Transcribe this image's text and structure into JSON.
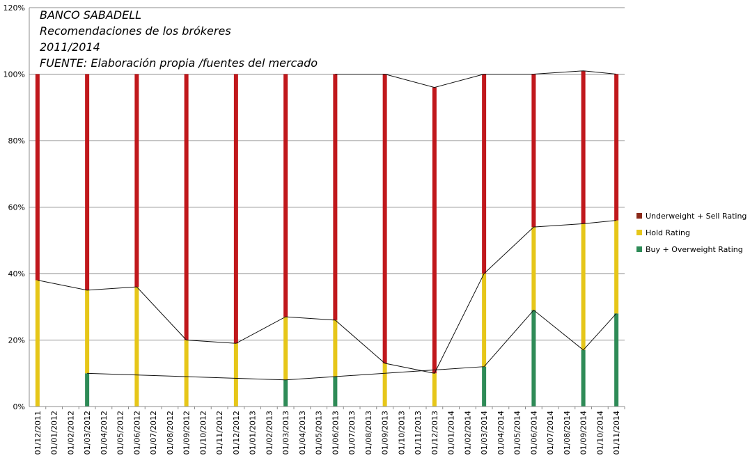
{
  "chart_data": {
    "type": "bar",
    "stacked": true,
    "title_lines": [
      "BANCO SABADELL",
      "Recomendaciones de los brókeres",
      "2011/2014",
      "FUENTE: Elaboración propia /fuentes del mercado"
    ],
    "ylim": [
      0,
      120
    ],
    "yticks": [
      0,
      20,
      40,
      60,
      80,
      100,
      120
    ],
    "ytick_labels": [
      "0%",
      "20%",
      "40%",
      "60%",
      "80%",
      "100%",
      "120%"
    ],
    "grid": true,
    "legend_position": "right",
    "categories": [
      "01/12/2011",
      "01/01/2012",
      "01/02/2012",
      "01/03/2012",
      "01/04/2012",
      "01/05/2012",
      "01/06/2012",
      "01/07/2012",
      "01/08/2012",
      "01/09/2012",
      "01/10/2012",
      "01/11/2012",
      "01/12/2012",
      "01/01/2013",
      "01/02/2013",
      "01/03/2013",
      "01/04/2013",
      "01/05/2013",
      "01/06/2013",
      "01/07/2013",
      "01/08/2013",
      "01/09/2013",
      "01/10/2013",
      "01/11/2013",
      "01/12/2013",
      "01/01/2014",
      "01/02/2014",
      "01/03/2014",
      "01/04/2014",
      "01/05/2014",
      "01/06/2014",
      "01/07/2014",
      "01/08/2014",
      "01/09/2014",
      "01/10/2014",
      "01/11/2014"
    ],
    "series": [
      {
        "name": "Buy + Overweight Rating",
        "color": "#2e8b57",
        "values": [
          0,
          null,
          null,
          10,
          null,
          null,
          0,
          null,
          null,
          0,
          null,
          null,
          0,
          null,
          null,
          8,
          null,
          null,
          9,
          null,
          null,
          0,
          null,
          null,
          0,
          null,
          null,
          12,
          null,
          null,
          29,
          null,
          null,
          17,
          null,
          28
        ]
      },
      {
        "name": "Hold Rating",
        "color": "#e6c619",
        "values": [
          38,
          null,
          null,
          25,
          null,
          null,
          36,
          null,
          null,
          20,
          null,
          null,
          19,
          null,
          null,
          19,
          null,
          null,
          17,
          null,
          null,
          13,
          null,
          null,
          10,
          null,
          null,
          28,
          null,
          null,
          25,
          null,
          null,
          38,
          null,
          28
        ]
      },
      {
        "name": "Underweight + Sell Rating",
        "color": "#c0181c",
        "values": [
          62,
          null,
          null,
          65,
          null,
          null,
          64,
          null,
          null,
          80,
          null,
          null,
          81,
          null,
          null,
          73,
          null,
          null,
          74,
          null,
          null,
          87,
          null,
          null,
          86,
          null,
          null,
          60,
          null,
          null,
          46,
          null,
          null,
          46,
          null,
          44
        ]
      }
    ],
    "line_series": [
      {
        "name": "buy-line",
        "values": [
          null,
          null,
          null,
          10,
          null,
          null,
          null,
          null,
          null,
          null,
          null,
          null,
          null,
          null,
          null,
          8,
          null,
          null,
          9,
          null,
          null,
          null,
          null,
          null,
          null,
          null,
          null,
          12,
          null,
          null,
          29,
          null,
          null,
          17,
          null,
          28
        ]
      },
      {
        "name": "buy-hold-line",
        "values": [
          38,
          null,
          null,
          35,
          null,
          null,
          36,
          null,
          null,
          20,
          null,
          null,
          19,
          null,
          null,
          27,
          null,
          null,
          26,
          null,
          null,
          13,
          null,
          null,
          10,
          null,
          null,
          40,
          null,
          null,
          54,
          null,
          null,
          55,
          null,
          56
        ]
      },
      {
        "name": "total-line",
        "values": [
          null,
          null,
          null,
          null,
          null,
          null,
          null,
          null,
          null,
          null,
          null,
          null,
          null,
          null,
          null,
          null,
          null,
          null,
          100,
          null,
          null,
          100,
          null,
          null,
          96,
          null,
          null,
          100,
          null,
          null,
          100,
          null,
          null,
          101,
          null,
          100
        ]
      }
    ],
    "legend": [
      {
        "label": "Underweight + Sell Rating",
        "color": "#8b2a1a"
      },
      {
        "label": "Hold Rating",
        "color": "#e6c619"
      },
      {
        "label": "Buy + Overweight Rating",
        "color": "#2e8b57"
      }
    ]
  }
}
